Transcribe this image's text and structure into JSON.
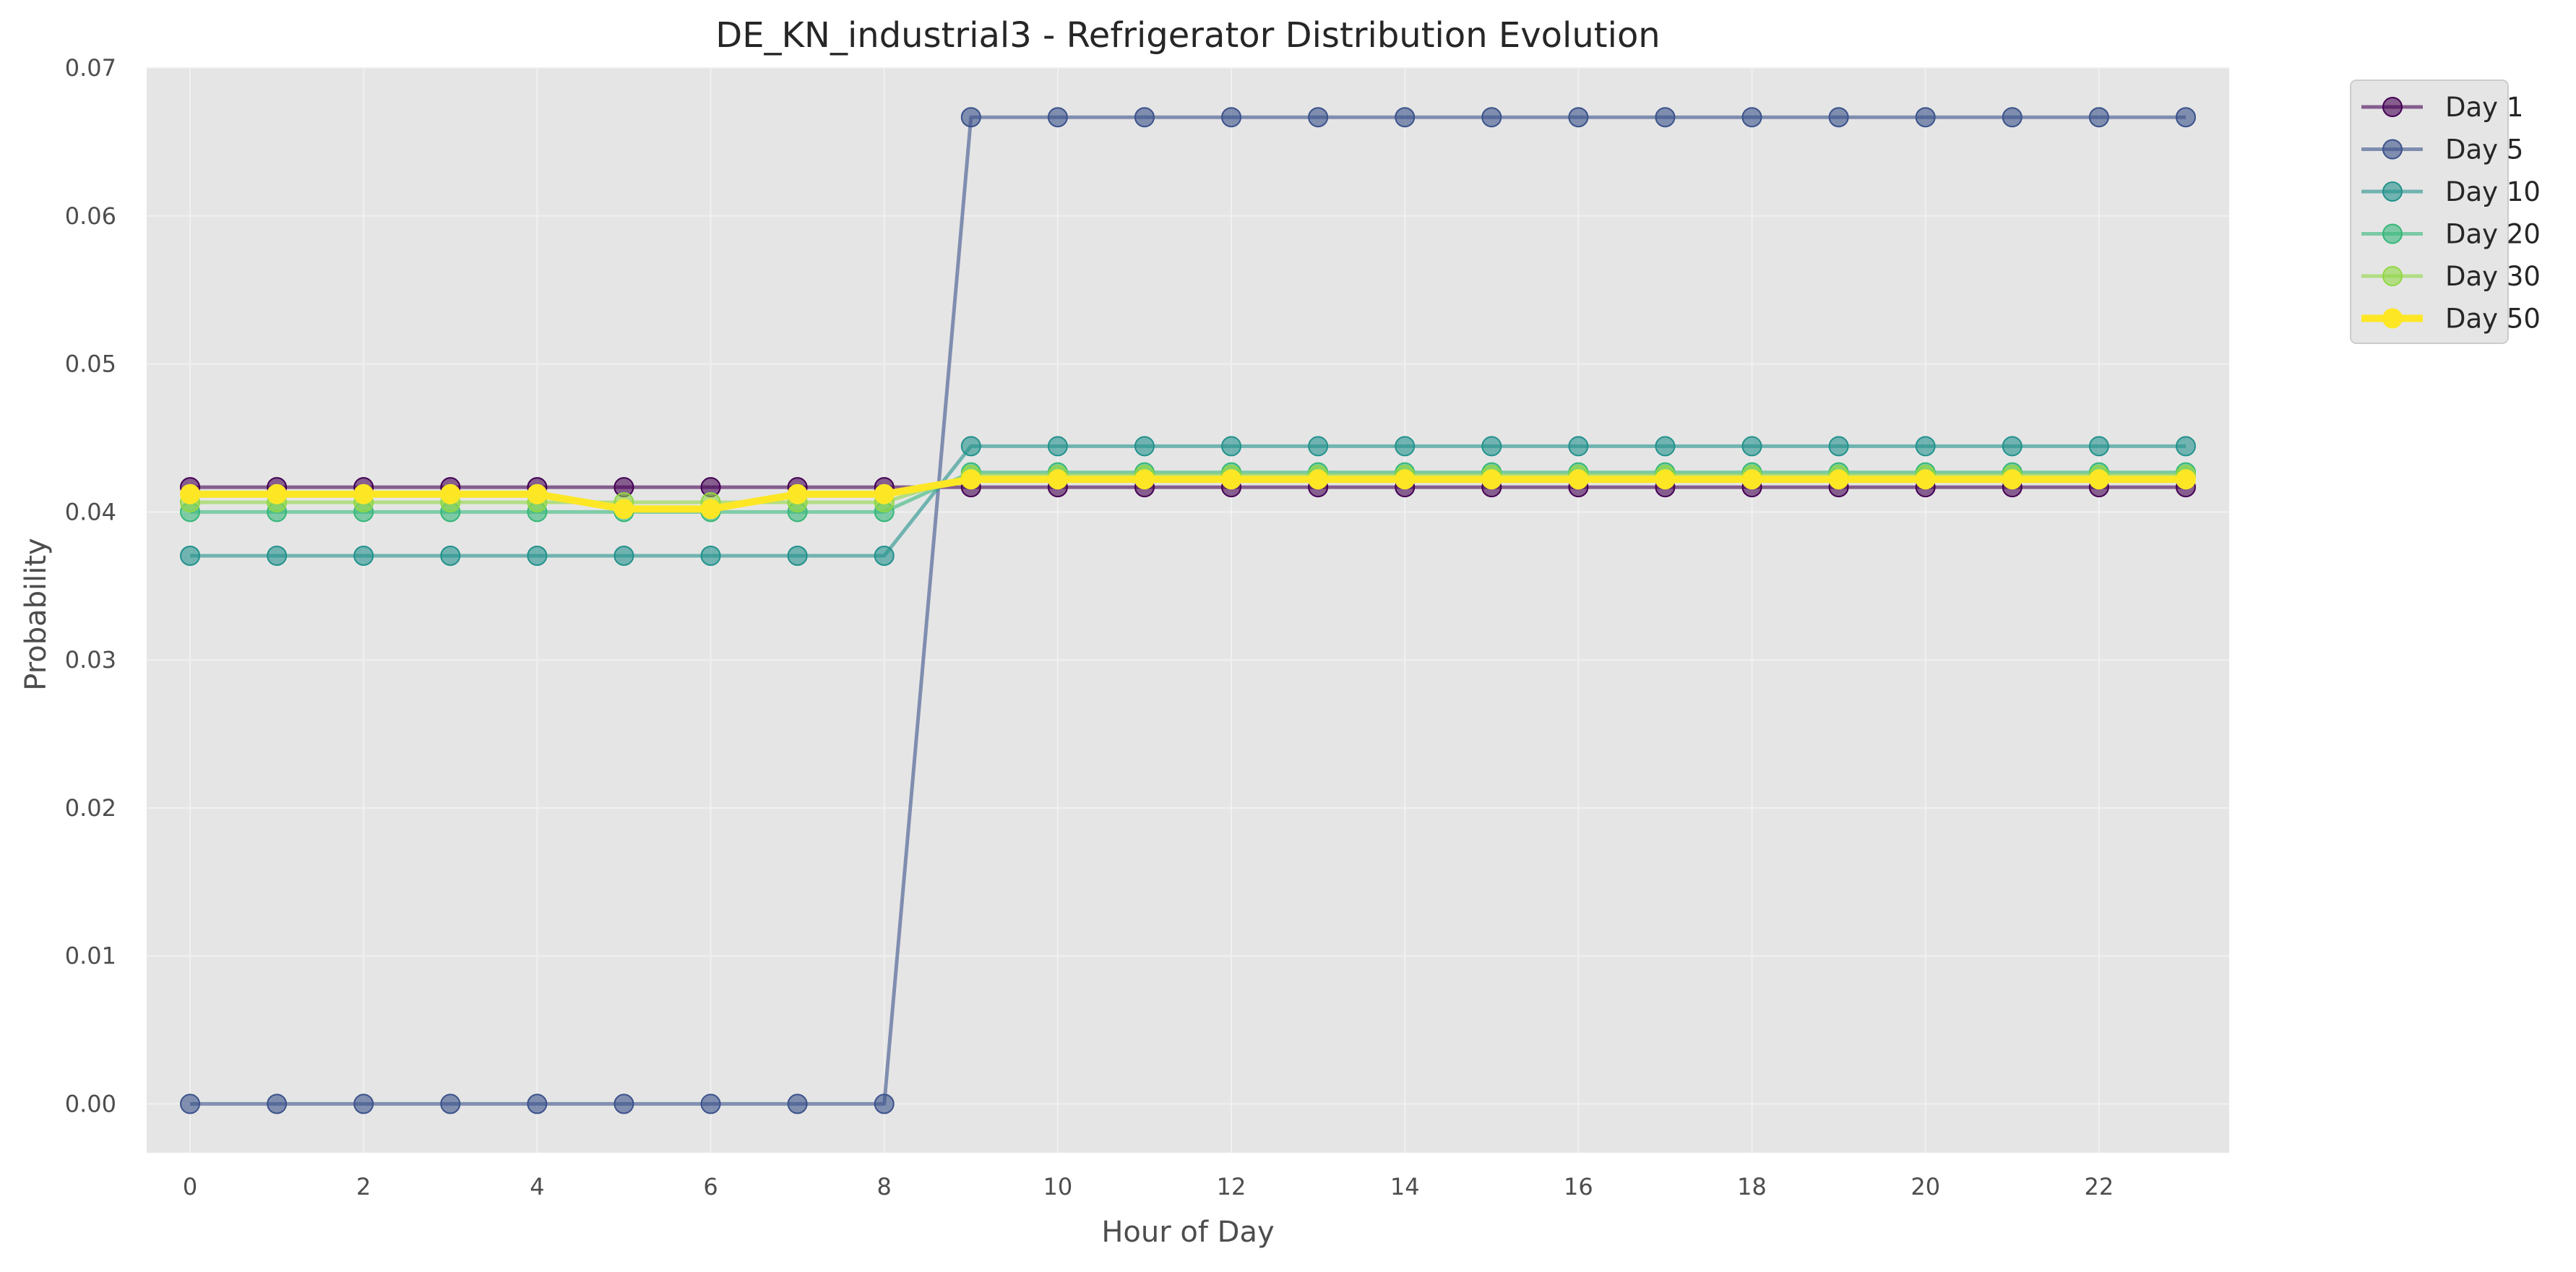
{
  "chart_data": {
    "type": "line",
    "title": "DE_KN_industrial3 - Refrigerator Distribution Evolution",
    "xlabel": "Hour of Day",
    "ylabel": "Probability",
    "xlim": [
      -0.5,
      23.5
    ],
    "ylim": [
      -0.0033,
      0.07
    ],
    "x_ticks": [
      0,
      2,
      4,
      6,
      8,
      10,
      12,
      14,
      16,
      18,
      20,
      22
    ],
    "y_ticks": [
      0.0,
      0.01,
      0.02,
      0.03,
      0.04,
      0.05,
      0.06,
      0.07
    ],
    "y_tick_labels": [
      "0.00",
      "0.01",
      "0.02",
      "0.03",
      "0.04",
      "0.05",
      "0.06",
      "0.07"
    ],
    "grid": true,
    "legend_position": "outside top-right",
    "x": [
      0,
      1,
      2,
      3,
      4,
      5,
      6,
      7,
      8,
      9,
      10,
      11,
      12,
      13,
      14,
      15,
      16,
      17,
      18,
      19,
      20,
      21,
      22,
      23
    ],
    "series": [
      {
        "name": "Day 1",
        "color": "#440154",
        "values": [
          0.04167,
          0.04167,
          0.04167,
          0.04167,
          0.04167,
          0.04167,
          0.04167,
          0.04167,
          0.04167,
          0.04167,
          0.04167,
          0.04167,
          0.04167,
          0.04167,
          0.04167,
          0.04167,
          0.04167,
          0.04167,
          0.04167,
          0.04167,
          0.04167,
          0.04167,
          0.04167,
          0.04167
        ]
      },
      {
        "name": "Day 5",
        "color": "#3b528b",
        "values": [
          0,
          0,
          0,
          0,
          0,
          0,
          0,
          0,
          0,
          0.06667,
          0.06667,
          0.06667,
          0.06667,
          0.06667,
          0.06667,
          0.06667,
          0.06667,
          0.06667,
          0.06667,
          0.06667,
          0.06667,
          0.06667,
          0.06667,
          0.06667
        ]
      },
      {
        "name": "Day 10",
        "color": "#21918c",
        "values": [
          0.03704,
          0.03704,
          0.03704,
          0.03704,
          0.03704,
          0.03704,
          0.03704,
          0.03704,
          0.03704,
          0.04444,
          0.04444,
          0.04444,
          0.04444,
          0.04444,
          0.04444,
          0.04444,
          0.04444,
          0.04444,
          0.04444,
          0.04444,
          0.04444,
          0.04444,
          0.04444,
          0.04444
        ]
      },
      {
        "name": "Day 20",
        "color": "#35b779",
        "values": [
          0.04,
          0.04,
          0.04,
          0.04,
          0.04,
          0.04,
          0.04,
          0.04,
          0.04,
          0.04267,
          0.04267,
          0.04267,
          0.04267,
          0.04267,
          0.04267,
          0.04267,
          0.04267,
          0.04267,
          0.04267,
          0.04267,
          0.04267,
          0.04267,
          0.04267,
          0.04267
        ]
      },
      {
        "name": "Day 30",
        "color": "#90d743",
        "values": [
          0.04065,
          0.04065,
          0.04065,
          0.04065,
          0.04065,
          0.04065,
          0.04065,
          0.04065,
          0.04065,
          0.04249,
          0.04249,
          0.04249,
          0.04249,
          0.04249,
          0.04249,
          0.04249,
          0.04249,
          0.04249,
          0.04249,
          0.04249,
          0.04249,
          0.04249,
          0.04249,
          0.04249
        ]
      },
      {
        "name": "Day 50",
        "color": "#fde725",
        "values": [
          0.0412,
          0.0412,
          0.0412,
          0.0412,
          0.0412,
          0.0402,
          0.0402,
          0.0412,
          0.0412,
          0.0422,
          0.0422,
          0.0422,
          0.0422,
          0.0422,
          0.0422,
          0.0422,
          0.0422,
          0.0422,
          0.0422,
          0.0422,
          0.0422,
          0.0422,
          0.0422,
          0.0422
        ]
      }
    ]
  }
}
